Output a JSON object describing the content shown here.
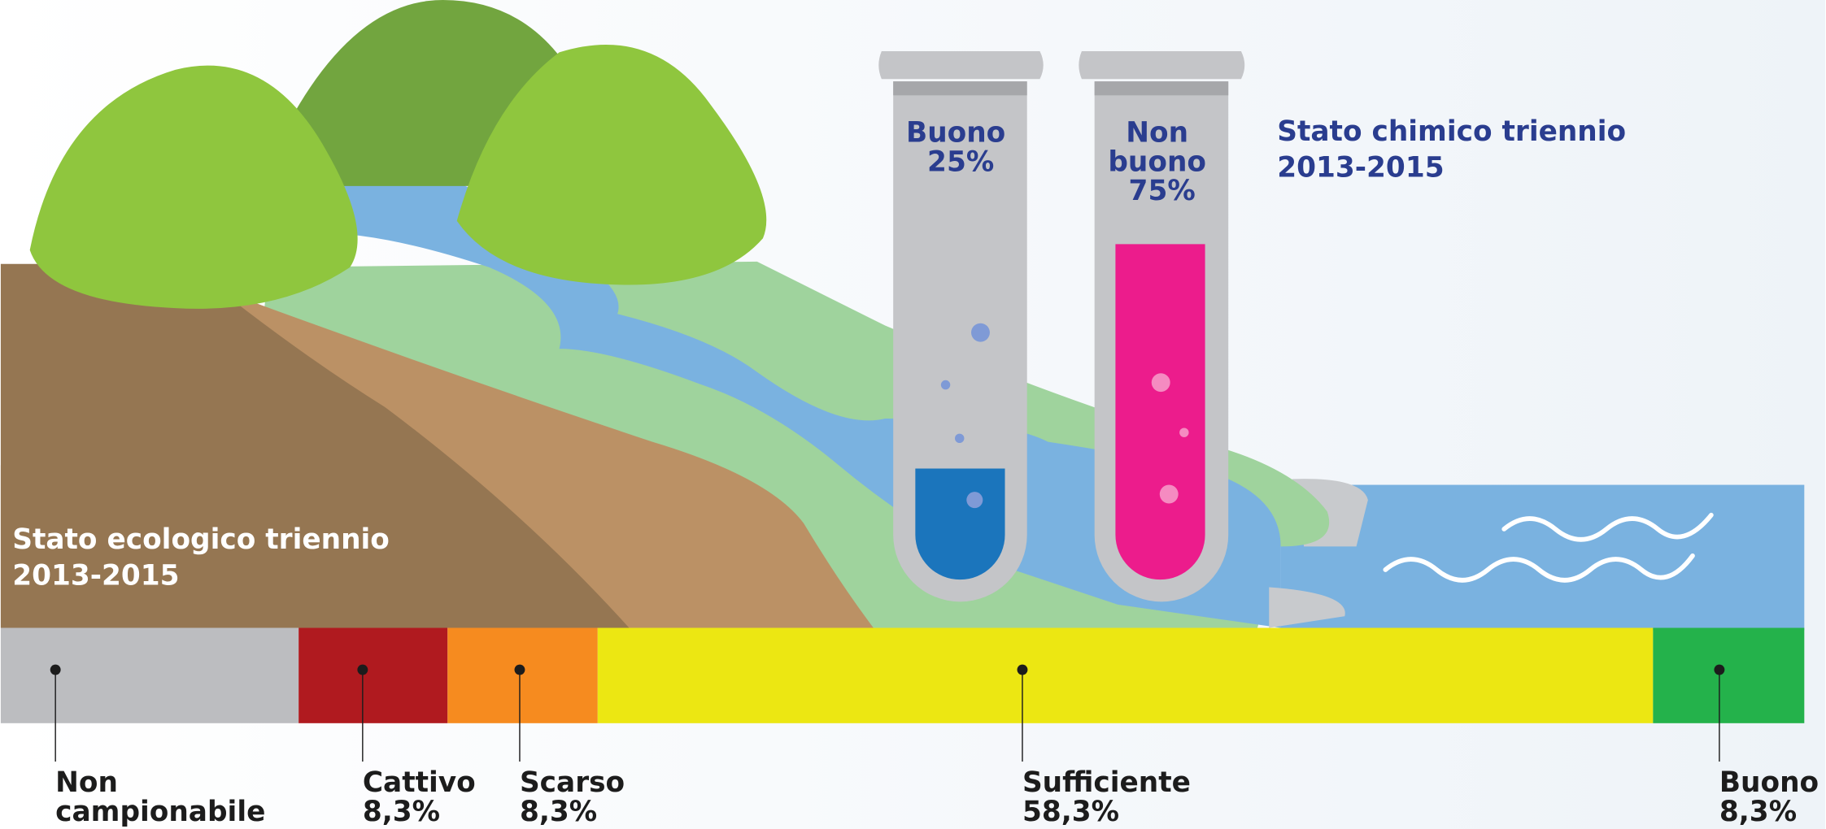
{
  "chemical": {
    "title": [
      "Stato chimico triennio",
      "2013-2015"
    ],
    "tubes": [
      {
        "label": [
          "Buono",
          "25%"
        ]
      },
      {
        "label": [
          "Non",
          "buono",
          "75%"
        ]
      }
    ]
  },
  "ecological": {
    "title": [
      "Stato ecologico triennio",
      "2013-2015"
    ],
    "classes": [
      {
        "label": [
          "Non",
          "campionabile"
        ]
      },
      {
        "label": [
          "Cattivo",
          "8,3%"
        ]
      },
      {
        "label": [
          "Scarso",
          "8,3%"
        ]
      },
      {
        "label": [
          "Sufficiente",
          "58,3%"
        ]
      },
      {
        "label": [
          "Buono",
          "8,3%"
        ]
      }
    ]
  }
}
